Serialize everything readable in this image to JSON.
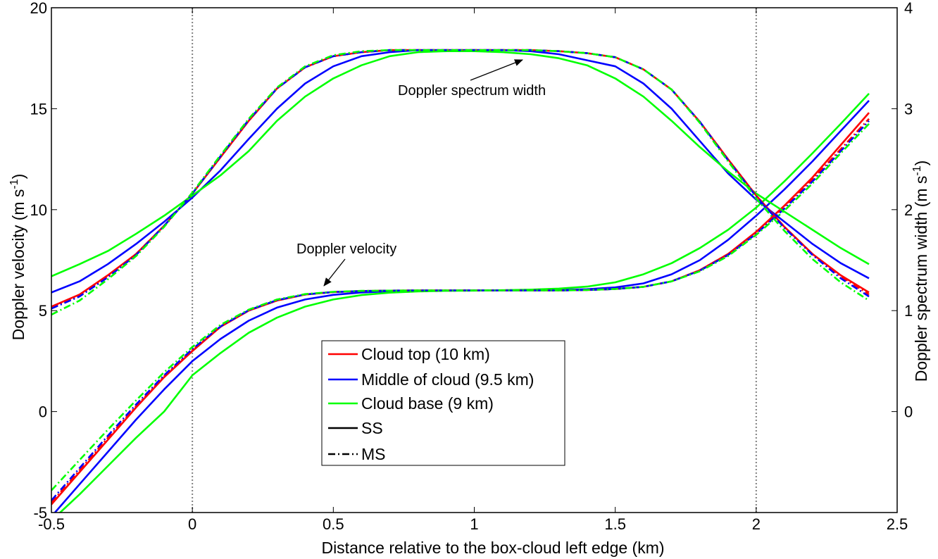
{
  "chart_data": {
    "type": "line",
    "x_axis": {
      "label": "Distance relative to the box-cloud left edge (km)",
      "range": [
        -0.5,
        2.5
      ],
      "ticks": [
        -0.5,
        0,
        0.5,
        1,
        1.5,
        2,
        2.5
      ],
      "tick_labels": [
        "-0.5",
        "0",
        "0.5",
        "1",
        "1.5",
        "2",
        "2.5"
      ]
    },
    "y_axis_left": {
      "label_main": "Doppler velocity (m s",
      "label_sup": "-1",
      "label_end": ")",
      "range": [
        -5,
        20
      ],
      "ticks": [
        -5,
        0,
        5,
        10,
        15,
        20
      ],
      "tick_labels": [
        "-5",
        "0",
        "5",
        "10",
        "15",
        "20"
      ]
    },
    "y_axis_right": {
      "label_main": "Doppler spectrum width (m s",
      "label_sup": "-1",
      "label_end": ")",
      "range": [
        -1,
        4
      ],
      "ticks": [
        0,
        1,
        2,
        3,
        4
      ],
      "tick_labels": [
        "0",
        "1",
        "2",
        "3",
        "4"
      ]
    },
    "vertical_reference_lines": [
      0,
      2
    ],
    "annotations": [
      {
        "text": "Doppler spectrum width",
        "text_x": 0.95,
        "text_y": 15.8,
        "arrow_to": [
          1.18,
          17.45
        ]
      },
      {
        "text": "Doppler velocity",
        "text_x": 0.37,
        "text_y": 7.8,
        "arrow_to": [
          0.46,
          6.05
        ]
      }
    ],
    "legend": {
      "placement": "center-bottom",
      "entries": [
        {
          "label": "Cloud top (10 km)",
          "color": "#ff0000",
          "style": "solid"
        },
        {
          "label": "Middle of cloud (9.5 km)",
          "color": "#0000ff",
          "style": "solid"
        },
        {
          "label": "Cloud base (9 km)",
          "color": "#00ff00",
          "style": "solid"
        },
        {
          "label": "SS",
          "color": "#000000",
          "style": "solid"
        },
        {
          "label": "MS",
          "color": "#000000",
          "style": "dashdot"
        }
      ]
    },
    "x": [
      -0.5,
      -0.4,
      -0.3,
      -0.2,
      -0.1,
      0,
      0.1,
      0.2,
      0.3,
      0.4,
      0.5,
      0.6,
      0.7,
      0.8,
      0.9,
      1.0,
      1.1,
      1.2,
      1.3,
      1.4,
      1.5,
      1.6,
      1.7,
      1.8,
      1.9,
      2.0,
      2.1,
      2.2,
      2.3,
      2.4
    ],
    "series": [
      {
        "group": "velocity",
        "level": "top",
        "method": "SS",
        "color": "#ff0000",
        "style": "solid",
        "values": [
          -4.6,
          -3.0,
          -1.4,
          0.2,
          1.7,
          3.0,
          4.2,
          5.0,
          5.5,
          5.8,
          5.92,
          5.97,
          5.99,
          6.0,
          6.0,
          6.0,
          6.0,
          6.0,
          6.0,
          6.02,
          6.07,
          6.18,
          6.45,
          7.0,
          7.8,
          8.9,
          10.2,
          11.6,
          13.2,
          14.8
        ]
      },
      {
        "group": "velocity",
        "level": "middle",
        "method": "SS",
        "color": "#0000ff",
        "style": "solid",
        "values": [
          -5.2,
          -3.6,
          -2.0,
          -0.4,
          1.1,
          2.5,
          3.6,
          4.5,
          5.15,
          5.55,
          5.78,
          5.9,
          5.96,
          5.98,
          5.99,
          6.0,
          6.0,
          6.0,
          6.02,
          6.06,
          6.15,
          6.35,
          6.8,
          7.5,
          8.5,
          9.7,
          11.0,
          12.4,
          13.9,
          15.4
        ]
      },
      {
        "group": "velocity",
        "level": "base",
        "method": "SS",
        "color": "#00ff00",
        "style": "solid",
        "values": [
          -5.4,
          -4.1,
          -2.7,
          -1.3,
          0.0,
          1.8,
          2.9,
          3.9,
          4.65,
          5.2,
          5.55,
          5.77,
          5.89,
          5.95,
          5.98,
          5.99,
          6.01,
          6.04,
          6.09,
          6.19,
          6.4,
          6.8,
          7.35,
          8.1,
          9.0,
          10.1,
          11.4,
          12.8,
          14.25,
          15.75
        ]
      },
      {
        "group": "velocity",
        "level": "top",
        "method": "MS",
        "color": "#ff0000",
        "style": "dashdot",
        "values": [
          -4.5,
          -2.9,
          -1.3,
          0.25,
          1.75,
          3.05,
          4.2,
          5.0,
          5.5,
          5.8,
          5.92,
          5.97,
          5.99,
          6.0,
          6.0,
          6.0,
          6.0,
          6.0,
          6.0,
          6.02,
          6.07,
          6.18,
          6.45,
          7.0,
          7.8,
          8.85,
          10.15,
          11.5,
          13.0,
          14.5
        ]
      },
      {
        "group": "velocity",
        "level": "middle",
        "method": "MS",
        "color": "#0000ff",
        "style": "dashdot",
        "values": [
          -4.4,
          -2.8,
          -1.2,
          0.35,
          1.8,
          3.1,
          4.22,
          5.02,
          5.52,
          5.8,
          5.92,
          5.97,
          5.99,
          6.0,
          6.0,
          6.0,
          6.0,
          6.0,
          6.0,
          6.02,
          6.07,
          6.18,
          6.45,
          6.98,
          7.75,
          8.8,
          10.05,
          11.4,
          12.9,
          14.4
        ]
      },
      {
        "group": "velocity",
        "level": "base",
        "method": "MS",
        "color": "#00ff00",
        "style": "dashdot",
        "values": [
          -3.9,
          -2.4,
          -0.9,
          0.55,
          1.95,
          3.2,
          4.3,
          5.05,
          5.55,
          5.82,
          5.93,
          5.98,
          5.99,
          6.0,
          6.0,
          6.0,
          6.0,
          6.0,
          6.0,
          6.02,
          6.07,
          6.18,
          6.45,
          6.95,
          7.7,
          8.75,
          9.95,
          11.3,
          12.8,
          14.25
        ]
      },
      {
        "group": "width",
        "level": "top",
        "method": "SS",
        "color": "#ff0000",
        "style": "solid",
        "values": [
          1.04,
          1.16,
          1.35,
          1.56,
          1.84,
          2.16,
          2.52,
          2.88,
          3.2,
          3.41,
          3.52,
          3.56,
          3.58,
          3.58,
          3.58,
          3.58,
          3.58,
          3.58,
          3.57,
          3.55,
          3.51,
          3.39,
          3.19,
          2.87,
          2.5,
          2.14,
          1.83,
          1.56,
          1.35,
          1.18
        ]
      },
      {
        "group": "width",
        "level": "middle",
        "method": "SS",
        "color": "#0000ff",
        "style": "solid",
        "values": [
          1.18,
          1.29,
          1.46,
          1.66,
          1.88,
          2.12,
          2.39,
          2.7,
          3.0,
          3.25,
          3.42,
          3.52,
          3.56,
          3.58,
          3.58,
          3.58,
          3.58,
          3.57,
          3.54,
          3.48,
          3.42,
          3.25,
          3.0,
          2.68,
          2.36,
          2.1,
          1.88,
          1.66,
          1.47,
          1.32
        ]
      },
      {
        "group": "width",
        "level": "base",
        "method": "SS",
        "color": "#00ff00",
        "style": "solid",
        "values": [
          1.34,
          1.46,
          1.59,
          1.76,
          1.94,
          2.14,
          2.34,
          2.58,
          2.88,
          3.12,
          3.3,
          3.43,
          3.52,
          3.56,
          3.57,
          3.57,
          3.56,
          3.54,
          3.5,
          3.43,
          3.3,
          3.12,
          2.88,
          2.62,
          2.38,
          2.16,
          1.98,
          1.8,
          1.62,
          1.46
        ]
      },
      {
        "group": "width",
        "level": "top",
        "method": "MS",
        "color": "#ff0000",
        "style": "dashdot",
        "values": [
          1.03,
          1.15,
          1.34,
          1.56,
          1.84,
          2.16,
          2.52,
          2.88,
          3.2,
          3.41,
          3.52,
          3.56,
          3.58,
          3.58,
          3.58,
          3.58,
          3.58,
          3.58,
          3.57,
          3.55,
          3.51,
          3.39,
          3.19,
          2.87,
          2.5,
          2.14,
          1.83,
          1.56,
          1.34,
          1.16
        ]
      },
      {
        "group": "width",
        "level": "middle",
        "method": "MS",
        "color": "#0000ff",
        "style": "dashdot",
        "values": [
          1.02,
          1.14,
          1.33,
          1.55,
          1.84,
          2.16,
          2.53,
          2.89,
          3.2,
          3.41,
          3.52,
          3.56,
          3.58,
          3.58,
          3.58,
          3.58,
          3.58,
          3.58,
          3.57,
          3.55,
          3.51,
          3.39,
          3.19,
          2.87,
          2.49,
          2.13,
          1.82,
          1.55,
          1.32,
          1.14
        ]
      },
      {
        "group": "width",
        "level": "base",
        "method": "MS",
        "color": "#00ff00",
        "style": "dashdot",
        "values": [
          0.96,
          1.1,
          1.31,
          1.54,
          1.83,
          2.17,
          2.54,
          2.9,
          3.21,
          3.42,
          3.53,
          3.57,
          3.58,
          3.58,
          3.58,
          3.58,
          3.58,
          3.58,
          3.57,
          3.55,
          3.51,
          3.39,
          3.19,
          2.86,
          2.48,
          2.11,
          1.79,
          1.51,
          1.28,
          1.1
        ]
      }
    ]
  }
}
